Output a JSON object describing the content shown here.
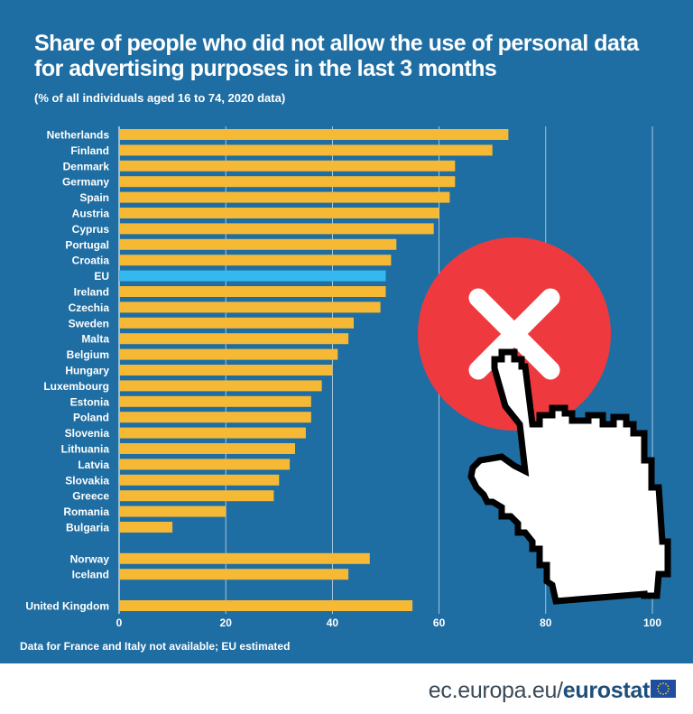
{
  "header": {
    "title_line1": "Share of people who did not allow the use of personal data",
    "title_line2": "for advertising purposes in the last 3 months",
    "subtitle": "(% of all individuals aged 16 to 74, 2020 data)"
  },
  "footnote": "Data for France and Italy not available; EU estimated",
  "footer": {
    "site": "ec.europa.eu/",
    "brand": "eurostat"
  },
  "colors": {
    "panel": "#1f6ea3",
    "bar": "#f6b935",
    "eu_bar": "#35b8f0",
    "grid": "#ffffff",
    "badge": "#ee3a3e"
  },
  "illustration": {
    "badge_icon": "close-icon",
    "cursor_icon": "pointing-hand-cursor-icon"
  },
  "chart_data": {
    "type": "bar",
    "orientation": "horizontal",
    "title": "Share of people who did not allow the use of personal data for advertising purposes in the last 3 months",
    "subtitle": "(% of all individuals aged 16 to 74, 2020 data)",
    "xlim": [
      0,
      100
    ],
    "xticks": [
      0,
      20,
      40,
      60,
      80,
      100
    ],
    "grid": true,
    "highlight": "EU",
    "groups": [
      {
        "categories": [
          "Netherlands",
          "Finland",
          "Denmark",
          "Germany",
          "Spain",
          "Austria",
          "Cyprus",
          "Portugal",
          "Croatia",
          "EU",
          "Ireland",
          "Czechia",
          "Sweden",
          "Malta",
          "Belgium",
          "Hungary",
          "Luxembourg",
          "Estonia",
          "Poland",
          "Slovenia",
          "Lithuania",
          "Latvia",
          "Slovakia",
          "Greece",
          "Romania",
          "Bulgaria"
        ],
        "values": [
          73,
          70,
          63,
          63,
          62,
          60,
          59,
          52,
          51,
          50,
          50,
          49,
          44,
          43,
          41,
          40,
          38,
          36,
          36,
          35,
          33,
          32,
          30,
          29,
          20,
          10
        ]
      },
      {
        "categories": [
          "Norway",
          "Iceland"
        ],
        "values": [
          47,
          43
        ]
      },
      {
        "categories": [
          "United Kingdom"
        ],
        "values": [
          55
        ]
      }
    ]
  }
}
